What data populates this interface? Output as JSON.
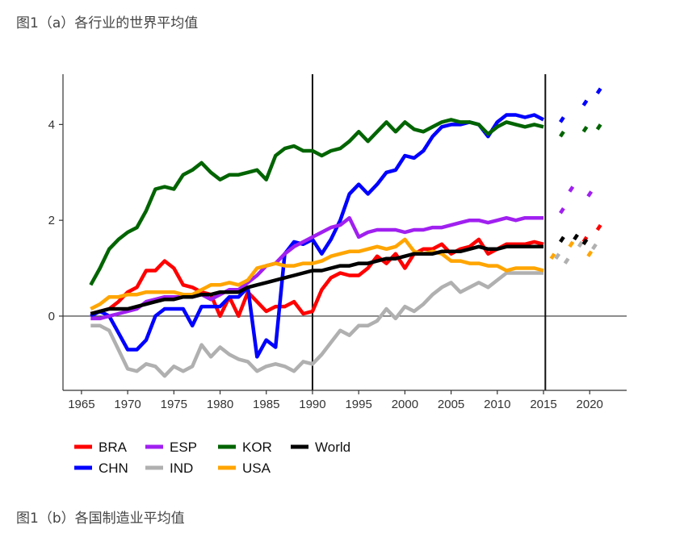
{
  "captions": {
    "top": "图1（a）各行业的世界平均值",
    "bottom": "图1（b）各国制造业平均值"
  },
  "chart_data": {
    "type": "line",
    "title": "",
    "xlabel": "",
    "ylabel": "",
    "xlim": [
      1963,
      2024
    ],
    "ylim": [
      -1.55,
      5.05
    ],
    "xticks": [
      "1965",
      "1970",
      "1975",
      "1980",
      "1985",
      "1990",
      "1995",
      "2000",
      "2005",
      "2010",
      "2015",
      "2020"
    ],
    "yticks": [
      "0",
      "2",
      "4"
    ],
    "vlines": [
      1990,
      2015.2
    ],
    "hline": 0,
    "legend_position": "bottom-left",
    "series": [
      {
        "name": "BRA",
        "color": "#ff0000",
        "x": [
          1966,
          1967,
          1968,
          1969,
          1970,
          1971,
          1972,
          1973,
          1974,
          1975,
          1976,
          1977,
          1978,
          1979,
          1980,
          1981,
          1982,
          1983,
          1984,
          1985,
          1986,
          1987,
          1988,
          1989,
          1990,
          1991,
          1992,
          1993,
          1994,
          1995,
          1996,
          1997,
          1998,
          1999,
          2000,
          2001,
          2002,
          2003,
          2004,
          2005,
          2006,
          2007,
          2008,
          2009,
          2010,
          2011,
          2012,
          2013,
          2014,
          2015
        ],
        "y": [
          0.05,
          0.1,
          0.15,
          0.3,
          0.5,
          0.6,
          0.95,
          0.95,
          1.15,
          1.0,
          0.65,
          0.6,
          0.5,
          0.45,
          0.0,
          0.4,
          0.0,
          0.5,
          0.3,
          0.1,
          0.2,
          0.2,
          0.3,
          0.05,
          0.1,
          0.55,
          0.8,
          0.9,
          0.85,
          0.85,
          1.0,
          1.25,
          1.1,
          1.3,
          1.0,
          1.3,
          1.4,
          1.4,
          1.5,
          1.3,
          1.4,
          1.45,
          1.6,
          1.3,
          1.4,
          1.5,
          1.5,
          1.5,
          1.55,
          1.5
        ],
        "proj_x": [
          2019.5,
          2021
        ],
        "proj_y": [
          1.6,
          1.85
        ]
      },
      {
        "name": "CHN",
        "color": "#0000ff",
        "x": [
          1966,
          1967,
          1968,
          1969,
          1970,
          1971,
          1972,
          1973,
          1974,
          1975,
          1976,
          1977,
          1978,
          1979,
          1980,
          1981,
          1982,
          1983,
          1984,
          1985,
          1986,
          1987,
          1988,
          1989,
          1990,
          1991,
          1992,
          1993,
          1994,
          1995,
          1996,
          1997,
          1998,
          1999,
          2000,
          2001,
          2002,
          2003,
          2004,
          2005,
          2006,
          2007,
          2008,
          2009,
          2010,
          2011,
          2012,
          2013,
          2014,
          2015
        ],
        "y": [
          0.0,
          0.1,
          0.0,
          -0.35,
          -0.7,
          -0.7,
          -0.5,
          0.0,
          0.15,
          0.15,
          0.15,
          -0.2,
          0.2,
          0.2,
          0.2,
          0.4,
          0.4,
          0.6,
          -0.85,
          -0.5,
          -0.65,
          1.3,
          1.55,
          1.5,
          1.6,
          1.3,
          1.6,
          2.0,
          2.55,
          2.75,
          2.55,
          2.75,
          3.0,
          3.05,
          3.35,
          3.3,
          3.45,
          3.75,
          3.95,
          4.0,
          4.0,
          4.05,
          4.0,
          3.75,
          4.05,
          4.2,
          4.2,
          4.15,
          4.2,
          4.1
        ],
        "proj_x": [
          2017,
          2019.5,
          2021
        ],
        "proj_y": [
          4.1,
          4.45,
          4.7
        ]
      },
      {
        "name": "ESP",
        "color": "#a020f0",
        "x": [
          1966,
          1967,
          1968,
          1969,
          1970,
          1971,
          1972,
          1973,
          1974,
          1975,
          1976,
          1977,
          1978,
          1979,
          1980,
          1981,
          1982,
          1983,
          1984,
          1985,
          1986,
          1987,
          1988,
          1989,
          1990,
          1991,
          1992,
          1993,
          1994,
          1995,
          1996,
          1997,
          1998,
          1999,
          2000,
          2001,
          2002,
          2003,
          2004,
          2005,
          2006,
          2007,
          2008,
          2009,
          2010,
          2011,
          2012,
          2013,
          2014,
          2015
        ],
        "y": [
          -0.05,
          -0.05,
          0.0,
          0.05,
          0.1,
          0.15,
          0.3,
          0.35,
          0.4,
          0.4,
          0.4,
          0.4,
          0.45,
          0.35,
          0.45,
          0.55,
          0.55,
          0.7,
          0.85,
          1.05,
          1.1,
          1.3,
          1.45,
          1.55,
          1.65,
          1.75,
          1.85,
          1.9,
          2.05,
          1.65,
          1.75,
          1.8,
          1.8,
          1.8,
          1.75,
          1.8,
          1.8,
          1.85,
          1.85,
          1.9,
          1.95,
          2.0,
          2.0,
          1.95,
          2.0,
          2.05,
          2.0,
          2.05,
          2.05,
          2.05
        ],
        "proj_x": [
          2017,
          2018,
          2020
        ],
        "proj_y": [
          2.2,
          2.65,
          2.55
        ]
      },
      {
        "name": "IND",
        "color": "#b0b0b0",
        "x": [
          1966,
          1967,
          1968,
          1969,
          1970,
          1971,
          1972,
          1973,
          1974,
          1975,
          1976,
          1977,
          1978,
          1979,
          1980,
          1981,
          1982,
          1983,
          1984,
          1985,
          1986,
          1987,
          1988,
          1989,
          1990,
          1991,
          1992,
          1993,
          1994,
          1995,
          1996,
          1997,
          1998,
          1999,
          2000,
          2001,
          2002,
          2003,
          2004,
          2005,
          2006,
          2007,
          2008,
          2009,
          2010,
          2011,
          2012,
          2013,
          2014,
          2015
        ],
        "y": [
          -0.2,
          -0.2,
          -0.3,
          -0.7,
          -1.1,
          -1.15,
          -1.0,
          -1.05,
          -1.25,
          -1.05,
          -1.15,
          -1.05,
          -0.6,
          -0.85,
          -0.65,
          -0.8,
          -0.9,
          -0.95,
          -1.15,
          -1.05,
          -1.0,
          -1.05,
          -1.15,
          -0.95,
          -1.0,
          -0.8,
          -0.55,
          -0.3,
          -0.4,
          -0.2,
          -0.2,
          -0.1,
          0.15,
          -0.05,
          0.2,
          0.1,
          0.25,
          0.45,
          0.6,
          0.7,
          0.5,
          0.6,
          0.7,
          0.6,
          0.75,
          0.9,
          0.9,
          0.9,
          0.9,
          0.9
        ],
        "proj_x": [
          2016.5,
          2017.5,
          2019,
          2020.5
        ],
        "proj_y": [
          1.25,
          1.15,
          1.5,
          1.45
        ]
      },
      {
        "name": "KOR",
        "color": "#006400",
        "x": [
          1966,
          1967,
          1968,
          1969,
          1970,
          1971,
          1972,
          1973,
          1974,
          1975,
          1976,
          1977,
          1978,
          1979,
          1980,
          1981,
          1982,
          1983,
          1984,
          1985,
          1986,
          1987,
          1988,
          1989,
          1990,
          1991,
          1992,
          1993,
          1994,
          1995,
          1996,
          1997,
          1998,
          1999,
          2000,
          2001,
          2002,
          2003,
          2004,
          2005,
          2006,
          2007,
          2008,
          2009,
          2010,
          2011,
          2012,
          2013,
          2014,
          2015
        ],
        "y": [
          0.65,
          1.0,
          1.4,
          1.6,
          1.75,
          1.85,
          2.2,
          2.65,
          2.7,
          2.65,
          2.95,
          3.05,
          3.2,
          3.0,
          2.85,
          2.95,
          2.95,
          3.0,
          3.05,
          2.85,
          3.35,
          3.5,
          3.55,
          3.45,
          3.45,
          3.35,
          3.45,
          3.5,
          3.65,
          3.85,
          3.65,
          3.85,
          4.05,
          3.85,
          4.05,
          3.9,
          3.85,
          3.95,
          4.05,
          4.1,
          4.05,
          4.05,
          4.0,
          3.8,
          3.95,
          4.05,
          4.0,
          3.95,
          4.0,
          3.95
        ],
        "proj_x": [
          2017,
          2019.5,
          2021
        ],
        "proj_y": [
          3.8,
          3.9,
          3.95
        ]
      },
      {
        "name": "USA",
        "color": "#ffa500",
        "x": [
          1966,
          1967,
          1968,
          1969,
          1970,
          1971,
          1972,
          1973,
          1974,
          1975,
          1976,
          1977,
          1978,
          1979,
          1980,
          1981,
          1982,
          1983,
          1984,
          1985,
          1986,
          1987,
          1988,
          1989,
          1990,
          1991,
          1992,
          1993,
          1994,
          1995,
          1996,
          1997,
          1998,
          1999,
          2000,
          2001,
          2002,
          2003,
          2004,
          2005,
          2006,
          2007,
          2008,
          2009,
          2010,
          2011,
          2012,
          2013,
          2014,
          2015
        ],
        "y": [
          0.15,
          0.25,
          0.4,
          0.4,
          0.45,
          0.45,
          0.5,
          0.5,
          0.5,
          0.5,
          0.45,
          0.45,
          0.55,
          0.65,
          0.65,
          0.7,
          0.65,
          0.75,
          1.0,
          1.05,
          1.1,
          1.05,
          1.05,
          1.1,
          1.1,
          1.15,
          1.25,
          1.3,
          1.35,
          1.35,
          1.4,
          1.45,
          1.4,
          1.45,
          1.6,
          1.35,
          1.3,
          1.35,
          1.3,
          1.15,
          1.15,
          1.1,
          1.1,
          1.05,
          1.05,
          0.95,
          1.0,
          1.0,
          1.0,
          0.95
        ],
        "proj_x": [
          2016,
          2018,
          2020
        ],
        "proj_y": [
          1.25,
          1.5,
          1.3
        ]
      },
      {
        "name": "World",
        "color": "#000000",
        "x": [
          1966,
          1967,
          1968,
          1969,
          1970,
          1971,
          1972,
          1973,
          1974,
          1975,
          1976,
          1977,
          1978,
          1979,
          1980,
          1981,
          1982,
          1983,
          1984,
          1985,
          1986,
          1987,
          1988,
          1989,
          1990,
          1991,
          1992,
          1993,
          1994,
          1995,
          1996,
          1997,
          1998,
          1999,
          2000,
          2001,
          2002,
          2003,
          2004,
          2005,
          2006,
          2007,
          2008,
          2009,
          2010,
          2011,
          2012,
          2013,
          2014,
          2015
        ],
        "y": [
          0.05,
          0.1,
          0.15,
          0.15,
          0.15,
          0.2,
          0.25,
          0.3,
          0.35,
          0.35,
          0.4,
          0.4,
          0.45,
          0.45,
          0.5,
          0.5,
          0.5,
          0.6,
          0.65,
          0.7,
          0.75,
          0.8,
          0.85,
          0.9,
          0.95,
          0.95,
          1.0,
          1.05,
          1.05,
          1.1,
          1.1,
          1.15,
          1.2,
          1.2,
          1.25,
          1.3,
          1.3,
          1.3,
          1.35,
          1.35,
          1.35,
          1.4,
          1.45,
          1.4,
          1.4,
          1.45,
          1.45,
          1.45,
          1.45,
          1.45
        ],
        "proj_x": [
          2017,
          2018.5,
          2019.5
        ],
        "proj_y": [
          1.6,
          1.65,
          1.55
        ]
      }
    ]
  }
}
